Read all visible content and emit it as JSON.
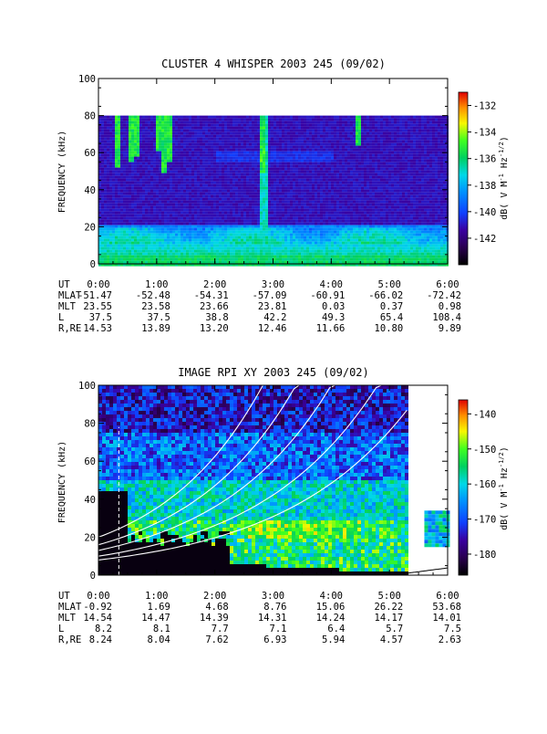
{
  "chart_data": [
    {
      "type": "heatmap",
      "title": "CLUSTER 4 WHISPER 2003 245 (09/02)",
      "ylabel": "FREQUENCY (kHz)",
      "colorbar_label": "dB( V M⁻¹ Hz⁻¹′²)",
      "colorbar_label_parts": [
        "dB( V M",
        "-1",
        " Hz",
        "-1/2",
        ")"
      ],
      "x_ticks": [
        "0:00",
        "1:00",
        "2:00",
        "3:00",
        "4:00",
        "5:00",
        "6:00"
      ],
      "y_ticks": [
        "0",
        "20",
        "40",
        "60",
        "80",
        "100"
      ],
      "ylim": [
        0,
        100
      ],
      "colorbar_ticks": [
        "-132",
        "-134",
        "-136",
        "-138",
        "-140",
        "-142"
      ],
      "colorbar_range": [
        -144,
        -131
      ],
      "data_ceiling_khz": 80,
      "rows": [
        {
          "label": "UT",
          "values": [
            "0:00",
            "1:00",
            "2:00",
            "3:00",
            "4:00",
            "5:00",
            "6:00"
          ]
        },
        {
          "label": "MLAT",
          "values": [
            "-51.47",
            "-52.48",
            "-54.31",
            "-57.09",
            "-60.91",
            "-66.02",
            "-72.42"
          ]
        },
        {
          "label": "MLT",
          "values": [
            "23.55",
            "23.58",
            "23.66",
            "23.81",
            "0.03",
            "0.37",
            "0.98"
          ]
        },
        {
          "label": "L",
          "values": [
            "37.5",
            "37.5",
            "38.8",
            "42.2",
            "49.3",
            "65.4",
            "108.4"
          ]
        },
        {
          "label": "R,RE",
          "values": [
            "14.53",
            "13.89",
            "13.20",
            "12.46",
            "11.66",
            "10.80",
            "9.89"
          ]
        }
      ]
    },
    {
      "type": "heatmap",
      "title": "IMAGE RPI XY 2003 245 (09/02)",
      "ylabel": "FREQUENCY (kHz)",
      "colorbar_label": "dB( V M⁻¹ Hz⁻¹′²)",
      "colorbar_label_parts": [
        "dB( V M",
        "-1",
        " Hz",
        "-1/2",
        ")"
      ],
      "x_ticks": [
        "0:00",
        "1:00",
        "2:00",
        "3:00",
        "4:00",
        "5:00",
        "6:00"
      ],
      "y_ticks": [
        "0",
        "20",
        "40",
        "60",
        "80",
        "100"
      ],
      "ylim": [
        0,
        100
      ],
      "colorbar_ticks": [
        "-140",
        "-150",
        "-160",
        "-170",
        "-180"
      ],
      "colorbar_range": [
        -186,
        -136
      ],
      "data_end_hour": 5.3,
      "rows": [
        {
          "label": "UT",
          "values": [
            "0:00",
            "1:00",
            "2:00",
            "3:00",
            "4:00",
            "5:00",
            "6:00"
          ]
        },
        {
          "label": "MLAT",
          "values": [
            "-0.92",
            "1.69",
            "4.68",
            "8.76",
            "15.06",
            "26.22",
            "53.68"
          ]
        },
        {
          "label": "MLT",
          "values": [
            "14.54",
            "14.47",
            "14.39",
            "14.31",
            "14.24",
            "14.17",
            "14.01"
          ]
        },
        {
          "label": "L",
          "values": [
            "8.2",
            "8.1",
            "7.7",
            "7.1",
            "6.4",
            "5.7",
            "7.5"
          ]
        },
        {
          "label": "R,RE",
          "values": [
            "8.24",
            "8.04",
            "7.62",
            "6.93",
            "5.94",
            "4.57",
            "2.63"
          ]
        }
      ]
    }
  ]
}
